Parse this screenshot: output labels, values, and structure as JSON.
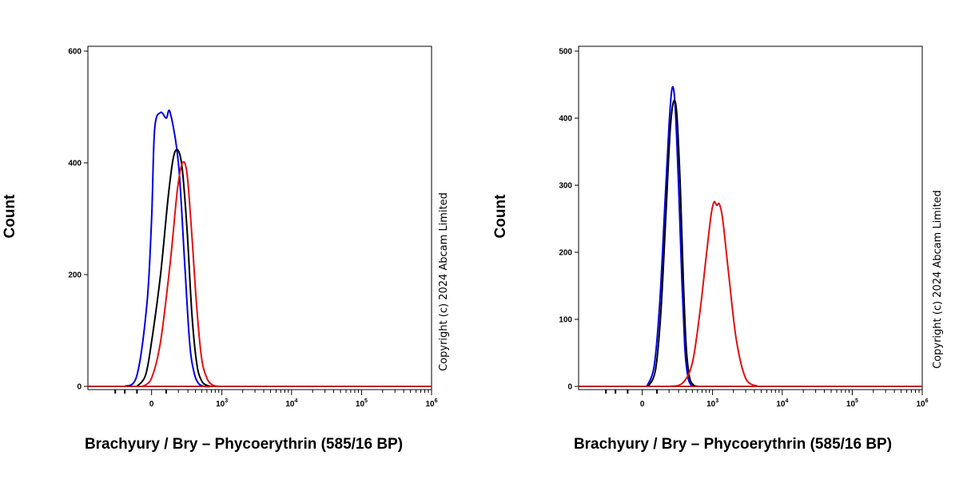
{
  "chart_data": [
    {
      "type": "area",
      "xlabel": "Brachyury / Bry – Phycoerythrin (585/16 BP)",
      "ylabel": "Count",
      "ylim": [
        0,
        600
      ],
      "yticks": [
        0,
        200,
        400,
        600
      ],
      "xscale": "biexponential",
      "xticks": [
        {
          "base": "0",
          "exp": ""
        },
        {
          "base": "10",
          "exp": "3"
        },
        {
          "base": "10",
          "exp": "4"
        },
        {
          "base": "10",
          "exp": "5"
        },
        {
          "base": "10",
          "exp": "6"
        }
      ],
      "copyright": "Copyright (c) 2024 Abcam Limited",
      "series": [
        {
          "color": "#0000e0",
          "x": [
            -200,
            -100,
            -30,
            0,
            20,
            60,
            100,
            130,
            200,
            260,
            320,
            380,
            450,
            550,
            700
          ],
          "y": [
            0,
            20,
            150,
            300,
            460,
            490,
            480,
            490,
            400,
            230,
            80,
            25,
            5,
            0,
            0
          ]
        },
        {
          "color": "#000000",
          "x": [
            -100,
            -40,
            0,
            60,
            120,
            170,
            230,
            290,
            350,
            420,
            500,
            600,
            750
          ],
          "y": [
            0,
            20,
            80,
            200,
            350,
            420,
            400,
            280,
            130,
            40,
            10,
            2,
            0
          ]
        },
        {
          "color": "#e01010",
          "x": [
            -60,
            0,
            60,
            130,
            190,
            240,
            290,
            350,
            420,
            500,
            600,
            720,
            900
          ],
          "y": [
            0,
            15,
            80,
            220,
            350,
            400,
            380,
            270,
            140,
            50,
            15,
            3,
            0
          ]
        }
      ]
    },
    {
      "type": "area",
      "xlabel": "Brachyury / Bry – Phycoerythrin (585/16 BP)",
      "ylabel": "Count",
      "ylim": [
        0,
        500
      ],
      "yticks": [
        0,
        100,
        200,
        300,
        400,
        500
      ],
      "xscale": "biexponential",
      "xticks": [
        {
          "base": "0",
          "exp": ""
        },
        {
          "base": "10",
          "exp": "3"
        },
        {
          "base": "10",
          "exp": "4"
        },
        {
          "base": "10",
          "exp": "5"
        },
        {
          "base": "10",
          "exp": "6"
        }
      ],
      "copyright": "Copyright (c) 2024 Abcam Limited",
      "series": [
        {
          "color": "#0000e0",
          "x": [
            30,
            80,
            120,
            160,
            200,
            230,
            260,
            300,
            340,
            380,
            420,
            470,
            550
          ],
          "y": [
            0,
            30,
            120,
            260,
            390,
            445,
            420,
            300,
            160,
            60,
            18,
            3,
            0
          ]
        },
        {
          "color": "#000000",
          "x": [
            40,
            90,
            130,
            170,
            210,
            245,
            280,
            320,
            360,
            400,
            450,
            520,
            620
          ],
          "y": [
            0,
            25,
            110,
            250,
            380,
            425,
            405,
            300,
            160,
            60,
            15,
            2,
            0
          ]
        },
        {
          "color": "#e01010",
          "x": [
            200,
            350,
            500,
            650,
            800,
            950,
            1050,
            1150,
            1250,
            1400,
            1700,
            2200,
            3000,
            4500
          ],
          "y": [
            0,
            5,
            35,
            110,
            190,
            255,
            275,
            270,
            272,
            250,
            170,
            70,
            12,
            0
          ]
        }
      ]
    }
  ]
}
